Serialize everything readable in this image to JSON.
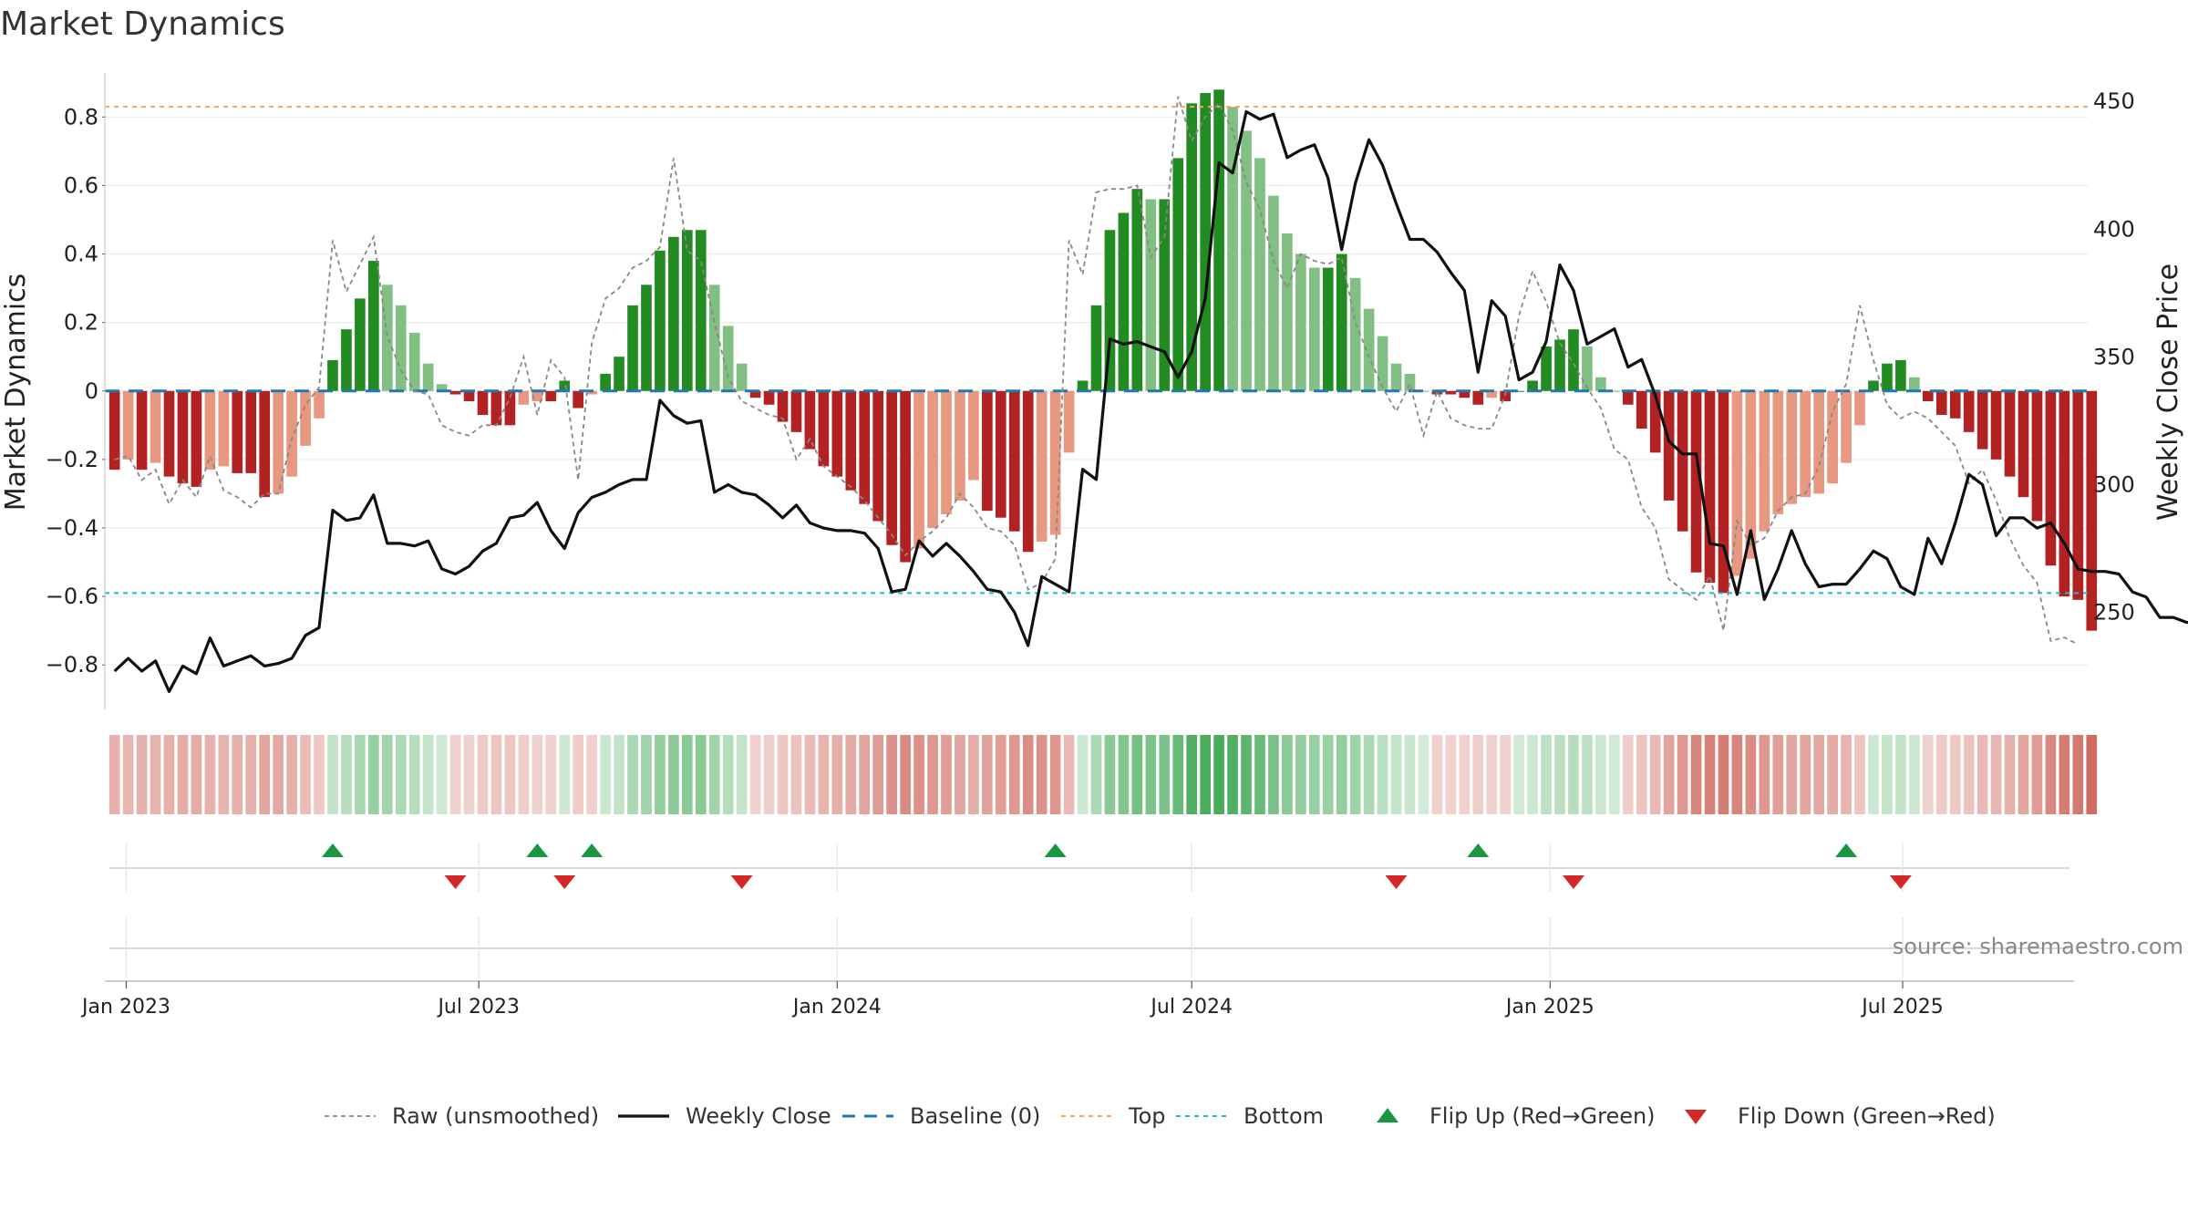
{
  "chart_data": {
    "type": "bar",
    "title": "Market Dynamics",
    "ylabel": "Market Dynamics",
    "ylabel_right": "Weekly Close Price",
    "ylim": [
      -0.93,
      0.95
    ],
    "ylim_right": [
      212,
      464
    ],
    "yticks": [
      -0.8,
      -0.6,
      -0.4,
      -0.2,
      0,
      0.2,
      0.4,
      0.6,
      0.8
    ],
    "yticks_right": [
      250,
      300,
      350,
      400,
      450
    ],
    "x_start": "2022-12-26",
    "x_step_days": 7,
    "xlim": [
      "2022-12-21",
      "2025-10-04"
    ],
    "xticks": [
      {
        "label": "Jan 2023",
        "date": "2023-01-01"
      },
      {
        "label": "Jul 2023",
        "date": "2023-07-01"
      },
      {
        "label": "Jan 2024",
        "date": "2024-01-01"
      },
      {
        "label": "Jul 2024",
        "date": "2024-07-01"
      },
      {
        "label": "Jan 2025",
        "date": "2025-01-01"
      },
      {
        "label": "Jul 2025",
        "date": "2025-07-01"
      }
    ],
    "top_level": 0.83,
    "bottom_level": -0.59,
    "grid": true,
    "legend_position": "bottom",
    "source": "source: sharemaestro.com",
    "colors": {
      "strong_up": "#228B22",
      "weak_up": "#82BF82",
      "strong_down": "#B22222",
      "weak_down": "#E89880",
      "close": "#111111",
      "raw": "#888888",
      "baseline": "#1F77B4",
      "top": "#F4A460",
      "bottom": "#17BECF",
      "flip_up": "#1A9641",
      "flip_down": "#D62728"
    },
    "series": [
      {
        "name": "Market Dynamics",
        "values": [
          -0.23,
          -0.2,
          -0.23,
          -0.21,
          -0.25,
          -0.27,
          -0.28,
          -0.23,
          -0.22,
          -0.24,
          -0.24,
          -0.31,
          -0.3,
          -0.25,
          -0.16,
          -0.08,
          0.09,
          0.18,
          0.27,
          0.38,
          0.31,
          0.25,
          0.17,
          0.08,
          0.02,
          -0.01,
          -0.03,
          -0.07,
          -0.1,
          -0.1,
          -0.04,
          -0.03,
          -0.03,
          0.03,
          -0.05,
          -0.01,
          0.05,
          0.1,
          0.25,
          0.31,
          0.41,
          0.45,
          0.47,
          0.47,
          0.31,
          0.19,
          0.08,
          -0.02,
          -0.04,
          -0.09,
          -0.12,
          -0.17,
          -0.22,
          -0.25,
          -0.29,
          -0.33,
          -0.38,
          -0.45,
          -0.5,
          -0.46,
          -0.4,
          -0.36,
          -0.32,
          -0.26,
          -0.35,
          -0.37,
          -0.41,
          -0.47,
          -0.44,
          -0.42,
          -0.18,
          0.03,
          0.25,
          0.47,
          0.52,
          0.59,
          0.56,
          0.56,
          0.68,
          0.84,
          0.87,
          0.88,
          0.83,
          0.76,
          0.68,
          0.57,
          0.46,
          0.4,
          0.36,
          0.36,
          0.4,
          0.33,
          0.24,
          0.16,
          0.08,
          0.05,
          0.0,
          -0.01,
          -0.01,
          -0.02,
          -0.04,
          -0.02,
          -0.03,
          0.0,
          0.03,
          0.13,
          0.15,
          0.18,
          0.13,
          0.04,
          0.0,
          -0.04,
          -0.11,
          -0.18,
          -0.32,
          -0.41,
          -0.53,
          -0.56,
          -0.59,
          -0.54,
          -0.49,
          -0.41,
          -0.36,
          -0.33,
          -0.31,
          -0.3,
          -0.27,
          -0.21,
          -0.1,
          0.03,
          0.08,
          0.09,
          0.04,
          -0.03,
          -0.07,
          -0.08,
          -0.12,
          -0.17,
          -0.2,
          -0.25,
          -0.31,
          -0.38,
          -0.51,
          -0.6,
          -0.61,
          -0.7
        ]
      },
      {
        "name": "Weekly Close",
        "values": [
          227,
          232,
          227,
          231,
          219,
          229,
          226,
          240,
          229,
          231,
          233,
          229,
          230,
          232,
          241,
          244,
          290,
          286,
          287,
          296,
          277,
          277,
          276,
          278,
          267,
          265,
          268,
          274,
          277,
          287,
          288,
          293,
          282,
          275,
          289,
          295,
          297,
          300,
          302,
          302,
          333,
          327,
          324,
          325,
          297,
          300,
          297,
          296,
          292,
          287,
          292,
          285,
          283,
          282,
          282,
          281,
          275,
          258,
          259,
          278,
          272,
          277,
          272,
          266,
          259,
          258,
          250,
          237,
          264,
          261,
          258,
          306,
          302,
          357,
          355,
          356,
          354,
          352,
          342,
          352,
          373,
          426,
          422,
          446,
          443,
          445,
          428,
          431,
          433,
          420,
          392,
          418,
          435,
          425,
          410,
          396,
          396,
          391,
          383,
          376,
          344,
          372,
          366,
          341,
          344,
          356,
          386,
          376,
          355,
          358,
          361,
          346,
          349,
          335,
          317,
          312,
          312,
          277,
          276,
          257,
          282,
          255,
          267,
          282,
          269,
          260,
          261,
          261,
          267,
          274,
          271,
          260,
          257,
          279,
          269,
          285,
          304,
          300,
          280,
          287,
          287,
          283,
          285,
          277,
          267,
          266,
          266,
          265,
          258,
          256,
          248,
          248,
          246,
          247,
          244,
          240
        ]
      },
      {
        "name": "Raw (unsmoothed)",
        "values": [
          -0.2,
          -0.19,
          -0.26,
          -0.23,
          -0.33,
          -0.26,
          -0.31,
          -0.19,
          -0.29,
          -0.31,
          -0.34,
          -0.3,
          -0.3,
          -0.14,
          -0.04,
          0.01,
          0.44,
          0.29,
          0.37,
          0.45,
          0.16,
          0.06,
          0.0,
          -0.01,
          -0.1,
          -0.12,
          -0.13,
          -0.1,
          -0.1,
          -0.02,
          0.1,
          -0.07,
          0.09,
          0.04,
          -0.26,
          0.14,
          0.27,
          0.3,
          0.36,
          0.38,
          0.42,
          0.68,
          0.41,
          0.38,
          0.2,
          0.04,
          -0.03,
          -0.05,
          -0.07,
          -0.08,
          -0.2,
          -0.14,
          -0.22,
          -0.25,
          -0.28,
          -0.32,
          -0.37,
          -0.42,
          -0.48,
          -0.44,
          -0.41,
          -0.37,
          -0.3,
          -0.34,
          -0.4,
          -0.41,
          -0.45,
          -0.58,
          -0.56,
          -0.49,
          0.44,
          0.34,
          0.58,
          0.59,
          0.59,
          0.6,
          0.39,
          0.45,
          0.86,
          0.73,
          0.8,
          0.84,
          0.76,
          0.61,
          0.53,
          0.38,
          0.3,
          0.4,
          0.38,
          0.37,
          0.39,
          0.2,
          0.1,
          0.01,
          -0.06,
          0.02,
          -0.13,
          0.0,
          -0.08,
          -0.1,
          -0.11,
          -0.11,
          -0.01,
          0.22,
          0.35,
          0.26,
          0.14,
          0.08,
          0.01,
          -0.05,
          -0.17,
          -0.2,
          -0.34,
          -0.4,
          -0.55,
          -0.58,
          -0.61,
          -0.54,
          -0.7,
          -0.38,
          -0.45,
          -0.43,
          -0.35,
          -0.31,
          -0.3,
          -0.22,
          -0.06,
          0.02,
          0.25,
          0.09,
          -0.04,
          -0.08,
          -0.06,
          -0.08,
          -0.12,
          -0.16,
          -0.27,
          -0.23,
          -0.32,
          -0.43,
          -0.51,
          -0.56,
          -0.73,
          -0.72,
          -0.74
        ]
      }
    ],
    "flip_up_weeks": [
      16,
      31,
      35,
      69,
      100,
      127
    ],
    "flip_down_weeks": [
      25,
      33,
      46,
      94,
      107,
      131
    ]
  },
  "legend": [
    {
      "label": "Raw (unsmoothed)",
      "kind": "dashed-line",
      "color": "#888888"
    },
    {
      "label": "Weekly Close",
      "kind": "line",
      "color": "#111111"
    },
    {
      "label": "Baseline (0)",
      "kind": "dashed-line",
      "color": "#1F77B4"
    },
    {
      "label": "Top",
      "kind": "dotted-line",
      "color": "#F4A460"
    },
    {
      "label": "Bottom",
      "kind": "dotted-line",
      "color": "#17BECF"
    },
    {
      "label": "Flip Up (Red→Green)",
      "kind": "triangle-up",
      "color": "#1A9641"
    },
    {
      "label": "Flip Down (Green→Red)",
      "kind": "triangle-down",
      "color": "#D62728"
    }
  ]
}
